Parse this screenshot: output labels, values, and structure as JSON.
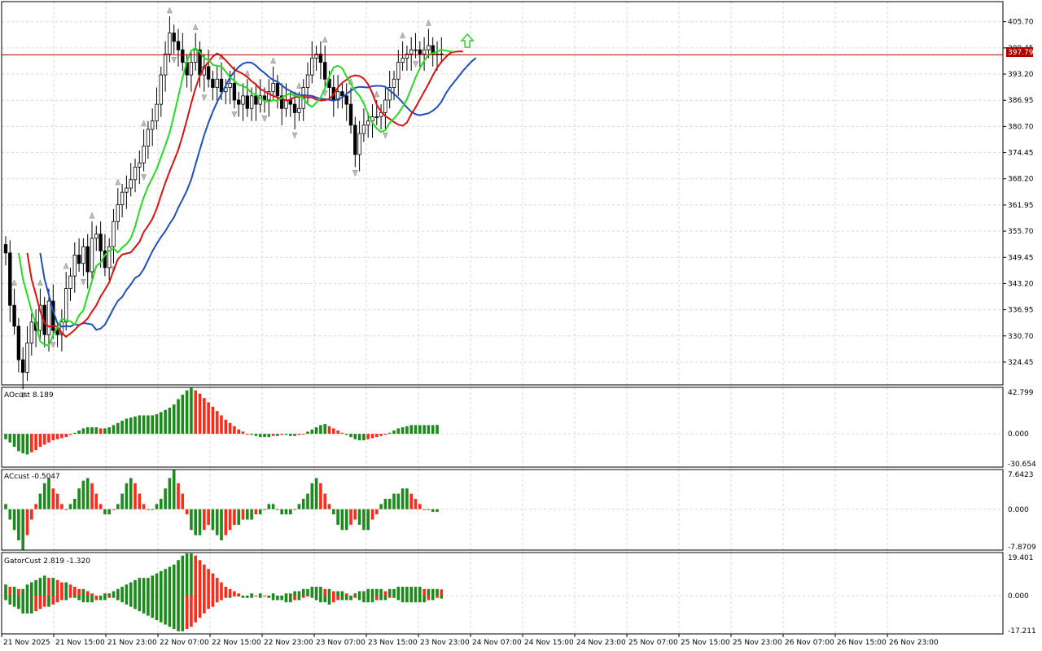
{
  "symbol_price_tag": "397.79",
  "colors": {
    "grid": "#d9d9d9",
    "jaw": "#1f4fbf",
    "teeth": "#e01010",
    "lips": "#22dd22",
    "up_bar": "#ffffff",
    "down_bar": "#000000",
    "price_line": "#b00000",
    "green": "#1c8a1c",
    "red": "#ff2a1a",
    "arrow": "#33cc33"
  },
  "main": {
    "price_axis": [
      "405.70",
      "399.45",
      "393.20",
      "386.95",
      "380.70",
      "374.45",
      "368.20",
      "361.95",
      "355.70",
      "349.45",
      "343.20",
      "336.95",
      "330.70",
      "324.45"
    ],
    "price_range": [
      319.0,
      410.5
    ],
    "current_price": "397.79"
  },
  "time_axis": [
    "21 Nov 2025",
    "21 Nov 15:00",
    "21 Nov 23:00",
    "22 Nov 07:00",
    "22 Nov 15:00",
    "22 Nov 23:00",
    "23 Nov 07:00",
    "23 Nov 15:00",
    "23 Nov 23:00",
    "24 Nov 07:00",
    "24 Nov 15:00",
    "24 Nov 23:00",
    "25 Nov 07:00",
    "25 Nov 15:00",
    "25 Nov 23:00",
    "26 Nov 07:00",
    "26 Nov 15:00",
    "26 Nov 23:00"
  ],
  "panels": {
    "ao": {
      "label": "AOcust 8.189",
      "axis": [
        "42.799",
        "0.000",
        "-30.654"
      ],
      "range": [
        -30.654,
        42.799
      ]
    },
    "ac": {
      "label": "ACcust -0.5047",
      "axis": [
        "7.6423",
        "0.000",
        "-7.8709"
      ],
      "range": [
        -7.8709,
        7.6423
      ]
    },
    "gator": {
      "label": "GatorCust 2.819 -1.320",
      "axis": [
        "19.401",
        "0.000",
        "-17.211"
      ],
      "range": [
        -17.211,
        19.401
      ]
    }
  },
  "chart_data": [
    {
      "type": "candlestick",
      "title": "",
      "series": [
        {
          "name": "",
          "ohlc_close": [
            350.5,
            338,
            333,
            325,
            322,
            329,
            334,
            332,
            338,
            331,
            339,
            332,
            331,
            334,
            342,
            345,
            350,
            348,
            352,
            346,
            354,
            355,
            351,
            347,
            352,
            358,
            362,
            365,
            366,
            368,
            371,
            372,
            376,
            380,
            382,
            386,
            393,
            398,
            403,
            401,
            399,
            396,
            393,
            396,
            399,
            393,
            395,
            392,
            390,
            392,
            389,
            390,
            391,
            387,
            386,
            388,
            385,
            388,
            386,
            388,
            387,
            389,
            391,
            388,
            385,
            387,
            386,
            384,
            385,
            390,
            393,
            397,
            398,
            396,
            392,
            390,
            387,
            389,
            388,
            386,
            381,
            374,
            379,
            381,
            382,
            383,
            383,
            384,
            387,
            390,
            392,
            396,
            397,
            398,
            399,
            399,
            398,
            399,
            400,
            398,
            398,
            397.8
          ]
        }
      ]
    },
    {
      "type": "bar",
      "title": "AOcust 8.189",
      "series": [
        {
          "name": "",
          "values": [
            -5,
            -8,
            -12,
            -16,
            -18,
            -19,
            -17,
            -15,
            -12,
            -10,
            -8,
            -6,
            -5,
            -4,
            -3,
            -1,
            1,
            3,
            5,
            6,
            6,
            6,
            5,
            5,
            6,
            8,
            10,
            12,
            14,
            15,
            16,
            17,
            17,
            17,
            17,
            18,
            20,
            22,
            24,
            27,
            32,
            36,
            40,
            42.8,
            40,
            37,
            33,
            29,
            25,
            21,
            17,
            13,
            10,
            7,
            4,
            2,
            0,
            -1,
            -2,
            -3,
            -3,
            -3,
            -2,
            -2,
            -1,
            -1,
            -2,
            -2,
            -1,
            0,
            2,
            4,
            6,
            8,
            9,
            7,
            5,
            3,
            1,
            -1,
            -3,
            -5,
            -6,
            -6,
            -5,
            -4,
            -3,
            -2,
            -1,
            1,
            3,
            5,
            6,
            7,
            8,
            8,
            8,
            8,
            8,
            8,
            8.2
          ]
        }
      ]
    },
    {
      "type": "bar",
      "title": "ACcust -0.5047",
      "series": [
        {
          "name": "",
          "values": [
            1,
            -2,
            -4,
            -6,
            -7.8,
            -5,
            -2,
            1,
            3,
            5,
            6,
            4,
            3,
            1,
            0,
            1,
            2,
            4,
            5.5,
            6,
            5,
            3,
            1,
            -1,
            -1,
            0,
            1,
            3,
            5,
            6,
            5,
            3,
            1,
            0,
            0,
            1,
            2,
            4,
            6,
            7.6,
            5,
            3,
            -1,
            -4,
            -5,
            -5,
            -4,
            -3,
            -4,
            -5,
            -6,
            -5,
            -4,
            -3,
            -3,
            -2,
            -2,
            -2,
            -1,
            -1,
            0,
            1,
            1,
            0,
            -1,
            -1,
            -1,
            0,
            1,
            2,
            3,
            5,
            6,
            5,
            3,
            1,
            -1,
            -3,
            -4,
            -4,
            -3,
            -2,
            -3,
            -4,
            -4,
            -2,
            -1,
            1,
            2,
            2,
            3,
            3,
            4,
            4,
            3,
            2,
            1,
            0,
            0,
            -0.5,
            -0.5
          ]
        }
      ]
    },
    {
      "type": "bar",
      "title": "GatorCust 2.819 -1.320",
      "series": [
        {
          "name": "",
          "values": [
            5,
            4,
            4,
            3,
            3,
            5,
            6,
            7,
            8,
            9,
            8,
            8,
            7,
            6,
            6,
            5,
            4,
            3,
            3,
            2,
            1,
            0,
            0,
            1,
            1,
            2,
            3,
            4,
            5,
            6,
            7,
            8,
            8,
            8,
            9,
            10,
            11,
            12,
            13,
            14,
            16,
            18,
            19,
            19,
            18,
            16,
            14,
            12,
            10,
            8,
            6,
            4,
            3,
            2,
            1,
            0,
            0,
            1,
            0,
            1,
            0,
            0,
            1,
            0,
            0,
            1,
            1,
            2,
            2,
            3,
            3,
            4,
            4,
            4,
            3,
            3,
            2,
            2,
            2,
            1,
            0,
            1,
            2,
            2,
            3,
            3,
            3,
            3,
            2,
            3,
            3,
            4,
            4,
            4,
            4,
            4,
            4,
            3,
            3,
            3,
            3,
            2.8
          ]
        },
        {
          "name": "",
          "values": [
            -2,
            -4,
            -5,
            -6,
            -8,
            -8,
            -8,
            -7,
            -6,
            -5,
            -5,
            -4,
            -3,
            -2,
            -2,
            -1,
            -1,
            -2,
            -3,
            -3,
            -3,
            -2,
            -2,
            -2,
            -1,
            -1,
            -2,
            -3,
            -4,
            -5,
            -6,
            -7,
            -8,
            -9,
            -10,
            -11,
            -12,
            -13,
            -14,
            -15,
            -16,
            -16,
            -15,
            -14,
            -12,
            -10,
            -8,
            -6,
            -5,
            -3,
            -2,
            -1,
            -1,
            0,
            0,
            -1,
            -1,
            -1,
            0,
            -1,
            0,
            -1,
            -2,
            -2,
            -2,
            -3,
            -3,
            -2,
            -2,
            -1,
            0,
            -1,
            -2,
            -3,
            -3,
            -4,
            -3,
            -2,
            -2,
            -2,
            -2,
            -1,
            -2,
            -3,
            -3,
            -3,
            -2,
            -2,
            -2,
            -1,
            -1,
            -2,
            -3,
            -3,
            -3,
            -3,
            -3,
            -3,
            -2,
            -2,
            -1,
            -1.32
          ]
        }
      ]
    }
  ]
}
